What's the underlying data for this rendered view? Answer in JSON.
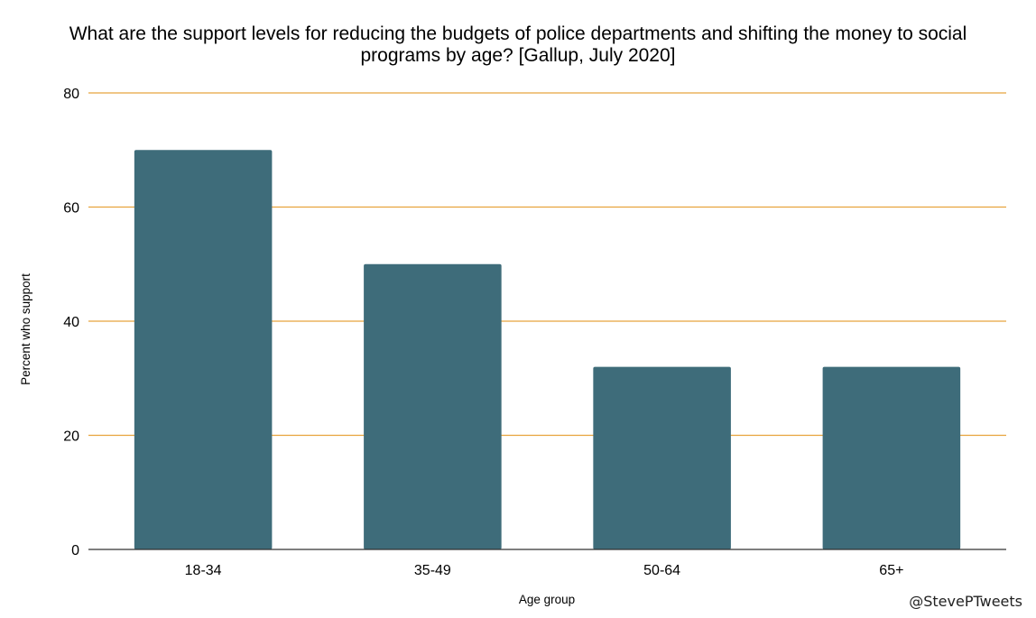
{
  "chart_data": {
    "type": "bar",
    "title": "What are the support levels for reducing the budgets of police departments and shifting the money to social programs by age? [Gallup, July 2020]",
    "title_lines": [
      "What are the support levels for reducing the budgets of police departments and shifting the money to social",
      "programs by age? [Gallup, July 2020]"
    ],
    "categories": [
      "18-34",
      "35-49",
      "50-64",
      "65+"
    ],
    "values": [
      70,
      50,
      32,
      32
    ],
    "xlabel": "Age group",
    "ylabel": "Percent who support",
    "ylim": [
      0,
      80
    ],
    "yticks": [
      0,
      20,
      40,
      60,
      80
    ],
    "grid": true,
    "legend": "none",
    "colors": {
      "bar": "#3e6c7a",
      "grid": "#e8a33d",
      "axis": "#333333"
    },
    "annotations": [
      "@StevePTweets"
    ]
  }
}
